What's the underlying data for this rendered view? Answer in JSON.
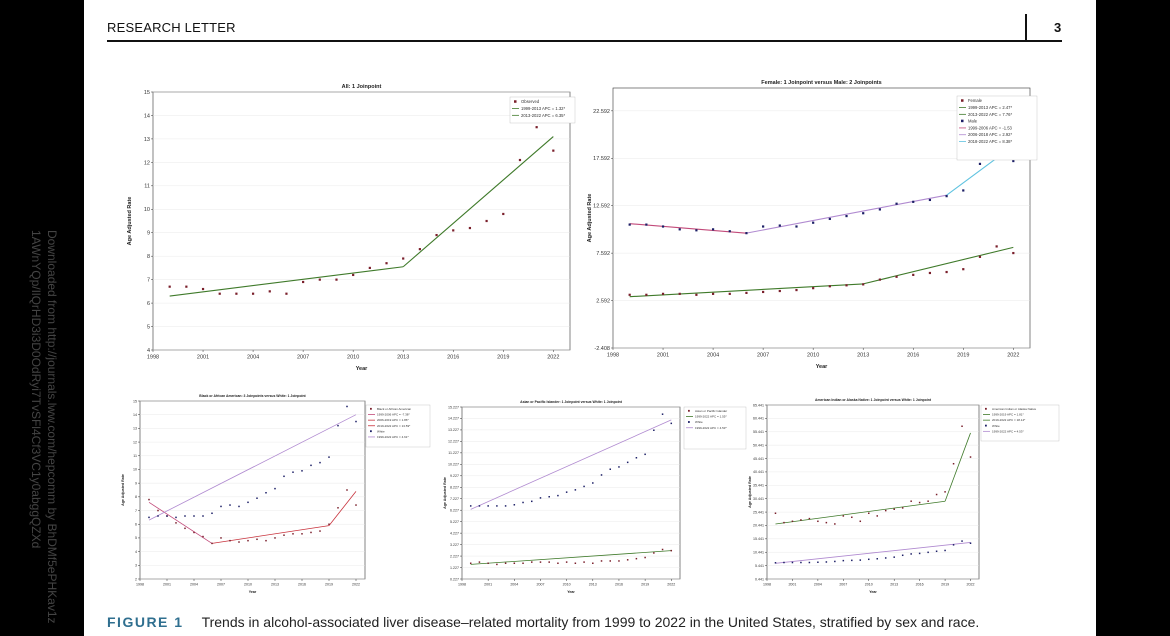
{
  "page": {
    "running_head": "RESEARCH LETTER",
    "page_number": "3",
    "side_note_line1": "Downloaded from http://journals.lww.com/hepcomm by BhDMf5ePHKav1z",
    "side_note_line2": "1AWnYQp/IlQrHD3i3D0OdRyi7TvSFl4Cf3VC1y0abggQZXd"
  },
  "caption": {
    "label": "FIGURE 1",
    "text": "Trends in alcohol-associated liver disease–related mortality from 1999 to 2022 in the United States, stratified by sex and race."
  },
  "colors": {
    "observed": "#7a1f2b",
    "male_marker": "#1c1f66",
    "green_fit": "#3f7a2a",
    "pink_fit": "#c24a7a",
    "violet_fit": "#b08ad0",
    "cyan_fit": "#5fc3e0",
    "red_fit": "#c8323c",
    "axis": "#333333",
    "grid": "#e4e4e4"
  },
  "chart_data": [
    {
      "type": "scatter",
      "title": "All: 1 Joinpoint",
      "xlabel": "Year",
      "ylabel": "Age Adjusted Rate",
      "xlim": [
        1998,
        2023
      ],
      "ylim": [
        4,
        15
      ],
      "xticks": [
        "1998",
        "2001",
        "2004",
        "2007",
        "2010",
        "2013",
        "2016",
        "2019",
        "2022"
      ],
      "yticks": [
        "4",
        "5",
        "6",
        "7",
        "8",
        "9",
        "10",
        "11",
        "12",
        "13",
        "14",
        "15"
      ],
      "legend_position": "top-right",
      "series": [
        {
          "name": "Observed",
          "marker_color": "#7a1f2b",
          "x": [
            1999,
            2000,
            2001,
            2002,
            2003,
            2004,
            2005,
            2006,
            2007,
            2008,
            2009,
            2010,
            2011,
            2012,
            2013,
            2014,
            2015,
            2016,
            2017,
            2018,
            2019,
            2020,
            2021,
            2022
          ],
          "y": [
            6.7,
            6.7,
            6.6,
            6.4,
            6.4,
            6.4,
            6.5,
            6.4,
            6.9,
            7.0,
            7.0,
            7.2,
            7.5,
            7.7,
            7.9,
            8.3,
            8.9,
            9.1,
            9.2,
            9.5,
            9.8,
            12.1,
            13.5,
            12.5
          ]
        }
      ],
      "fits": [
        {
          "label": "1999-2013 APC = 1.32*",
          "color": "#3f7a2a",
          "x": [
            1999,
            2013
          ],
          "y": [
            6.3,
            7.55
          ]
        },
        {
          "label": "2013-2022 APC = 6.35*",
          "color": "#3f7a2a",
          "x": [
            2013,
            2022
          ],
          "y": [
            7.55,
            13.1
          ]
        }
      ]
    },
    {
      "type": "scatter",
      "title": "Female: 1 Joinpoint versus Male: 2 Joinpoints",
      "xlabel": "Year",
      "ylabel": "Age Adjusted Rate",
      "xlim": [
        1998,
        2023
      ],
      "ylim": [
        -2.408,
        25
      ],
      "xticks": [
        "1998",
        "2001",
        "2004",
        "2007",
        "2010",
        "2013",
        "2016",
        "2019",
        "2022"
      ],
      "yticks": [
        "-2.408",
        "2.592",
        "7.592",
        "12.592",
        "17.592",
        "22.592"
      ],
      "legend_position": "top-right",
      "series": [
        {
          "name": "Female",
          "marker_color": "#7a1f2b",
          "x": [
            1999,
            2000,
            2001,
            2002,
            2003,
            2004,
            2005,
            2006,
            2007,
            2008,
            2009,
            2010,
            2011,
            2012,
            2013,
            2014,
            2015,
            2016,
            2017,
            2018,
            2019,
            2020,
            2021,
            2022
          ],
          "y": [
            3.2,
            3.2,
            3.3,
            3.3,
            3.2,
            3.3,
            3.3,
            3.4,
            3.5,
            3.6,
            3.7,
            3.9,
            4.1,
            4.2,
            4.3,
            4.8,
            5.1,
            5.3,
            5.5,
            5.6,
            5.9,
            7.2,
            8.3,
            7.6
          ]
        },
        {
          "name": "Male",
          "marker_color": "#1c1f66",
          "x": [
            1999,
            2000,
            2001,
            2002,
            2003,
            2004,
            2005,
            2006,
            2007,
            2008,
            2009,
            2010,
            2011,
            2012,
            2013,
            2014,
            2015,
            2016,
            2017,
            2018,
            2019,
            2020,
            2021,
            2022
          ],
          "y": [
            10.6,
            10.6,
            10.4,
            10.1,
            10.0,
            10.1,
            9.9,
            9.7,
            10.4,
            10.5,
            10.4,
            10.8,
            11.2,
            11.5,
            11.8,
            12.2,
            12.8,
            13.0,
            13.2,
            13.6,
            14.2,
            17.0,
            18.6,
            17.3
          ]
        }
      ],
      "fits": [
        {
          "label": "1999-2013 APC = 2.47*",
          "color": "#3f7a2a",
          "x": [
            1999,
            2013
          ],
          "y": [
            3.0,
            4.35
          ]
        },
        {
          "label": "2013-2022 APC = 7.76*",
          "color": "#3f7a2a",
          "x": [
            2013,
            2022
          ],
          "y": [
            4.35,
            8.2
          ]
        },
        {
          "label": "1999-2006 APC = -1.53",
          "color": "#c24a7a",
          "x": [
            1999,
            2006
          ],
          "y": [
            10.7,
            9.7
          ]
        },
        {
          "label": "2006-2018 APC = 2.92*",
          "color": "#b08ad0",
          "x": [
            2006,
            2018
          ],
          "y": [
            9.7,
            13.7
          ]
        },
        {
          "label": "2018-2022 APC = 8.38*",
          "color": "#5fc3e0",
          "x": [
            2018,
            2022
          ],
          "y": [
            13.7,
            18.9
          ]
        }
      ]
    },
    {
      "type": "scatter",
      "title": "Black or African American: 3 Joinpoints versus White: 1 Joinpoint",
      "xlabel": "Year",
      "ylabel": "Age Adjusted Rate",
      "xlim": [
        1998,
        2023
      ],
      "ylim": [
        2,
        15
      ],
      "xticks": [
        "1998",
        "2001",
        "2004",
        "2007",
        "2010",
        "2013",
        "2016",
        "2019",
        "2022"
      ],
      "yticks": [
        "2",
        "3",
        "4",
        "5",
        "6",
        "7",
        "8",
        "9",
        "10",
        "11",
        "12",
        "13",
        "14",
        "15"
      ],
      "legend_position": "top-right",
      "series": [
        {
          "name": "Black or African American",
          "marker_color": "#7a1f2b",
          "x": [
            1999,
            2000,
            2001,
            2002,
            2003,
            2004,
            2005,
            2006,
            2007,
            2008,
            2009,
            2010,
            2011,
            2012,
            2013,
            2014,
            2015,
            2016,
            2017,
            2018,
            2019,
            2020,
            2021,
            2022
          ],
          "y": [
            7.8,
            7.0,
            6.6,
            6.1,
            5.7,
            5.4,
            5.1,
            4.6,
            5.0,
            4.8,
            4.7,
            4.8,
            4.9,
            4.8,
            5.0,
            5.2,
            5.3,
            5.3,
            5.4,
            5.5,
            6.0,
            7.2,
            8.5,
            7.4
          ]
        },
        {
          "name": "White",
          "marker_color": "#1c1f66",
          "x": [
            1999,
            2000,
            2001,
            2002,
            2003,
            2004,
            2005,
            2006,
            2007,
            2008,
            2009,
            2010,
            2011,
            2012,
            2013,
            2014,
            2015,
            2016,
            2017,
            2018,
            2019,
            2020,
            2021,
            2022
          ],
          "y": [
            6.5,
            6.6,
            6.6,
            6.5,
            6.6,
            6.6,
            6.6,
            6.8,
            7.3,
            7.4,
            7.3,
            7.6,
            7.9,
            8.3,
            8.6,
            9.5,
            9.8,
            9.9,
            10.3,
            10.5,
            10.9,
            13.2,
            14.6,
            13.5
          ]
        }
      ],
      "fits": [
        {
          "label": "1999-2006 APC = -7.38*",
          "color": "#c24a7a",
          "x": [
            1999,
            2006
          ],
          "y": [
            7.6,
            4.6
          ]
        },
        {
          "label": "2006-2019 APC = 1.86*",
          "color": "#c8323c",
          "x": [
            2006,
            2019
          ],
          "y": [
            4.6,
            5.9
          ]
        },
        {
          "label": "2019-2022 APC = 13.59*",
          "color": "#c8323c",
          "x": [
            2019,
            2022
          ],
          "y": [
            5.9,
            8.4
          ]
        },
        {
          "label": "1999-2022 APC = 4.61*",
          "color": "#b08ad0",
          "x": [
            1999,
            2022
          ],
          "y": [
            6.3,
            14.0
          ]
        }
      ]
    },
    {
      "type": "scatter",
      "title": "Asian or Pacific Islander: 1 Joinpoint versus White: 1 Joinpoint",
      "xlabel": "Year",
      "ylabel": "Age Adjusted Rate",
      "xlim": [
        1998,
        2023
      ],
      "ylim": [
        0.227,
        15.227
      ],
      "xticks": [
        "1998",
        "2001",
        "2004",
        "2007",
        "2010",
        "2013",
        "2016",
        "2019",
        "2022"
      ],
      "yticks": [
        "0.227",
        "1.227",
        "2.227",
        "3.227",
        "4.227",
        "5.227",
        "6.227",
        "7.227",
        "8.227",
        "9.227",
        "10.227",
        "11.227",
        "12.227",
        "13.227",
        "14.227",
        "15.227"
      ],
      "legend_position": "top-right",
      "series": [
        {
          "name": "Asian or Pacific Islander",
          "marker_color": "#7a1f2b",
          "x": [
            1999,
            2000,
            2001,
            2002,
            2003,
            2004,
            2005,
            2006,
            2007,
            2008,
            2009,
            2010,
            2011,
            2012,
            2013,
            2014,
            2015,
            2016,
            2017,
            2018,
            2019,
            2020,
            2021,
            2022
          ],
          "y": [
            1.6,
            1.7,
            1.6,
            1.5,
            1.6,
            1.6,
            1.6,
            1.7,
            1.7,
            1.7,
            1.6,
            1.7,
            1.6,
            1.7,
            1.6,
            1.8,
            1.8,
            1.8,
            1.9,
            2.0,
            2.1,
            2.5,
            2.8,
            2.7
          ]
        },
        {
          "name": "White",
          "marker_color": "#1c1f66",
          "x": [
            1999,
            2000,
            2001,
            2002,
            2003,
            2004,
            2005,
            2006,
            2007,
            2008,
            2009,
            2010,
            2011,
            2012,
            2013,
            2014,
            2015,
            2016,
            2017,
            2018,
            2019,
            2020,
            2021,
            2022
          ],
          "y": [
            6.6,
            6.6,
            6.6,
            6.6,
            6.6,
            6.7,
            6.9,
            7.0,
            7.3,
            7.4,
            7.5,
            7.8,
            8.0,
            8.3,
            8.6,
            9.3,
            9.8,
            10.0,
            10.4,
            10.8,
            11.1,
            13.2,
            14.6,
            13.8
          ]
        }
      ],
      "fits": [
        {
          "label": "1999-2022 APC = 1.55*",
          "color": "#3f7a2a",
          "x": [
            1999,
            2022
          ],
          "y": [
            1.5,
            2.7
          ]
        },
        {
          "label": "1999-2022 APC = 4.53*",
          "color": "#b08ad0",
          "x": [
            1999,
            2022
          ],
          "y": [
            6.3,
            14.1
          ]
        }
      ]
    },
    {
      "type": "scatter",
      "title": "American Indian or Alaska Native: 1 Joinpoint versus White: 1 Joinpoint",
      "xlabel": "Year",
      "ylabel": "Age Adjusted Rate",
      "xlim": [
        1998,
        2023
      ],
      "ylim": [
        0.441,
        65.441
      ],
      "xticks": [
        "1998",
        "2001",
        "2004",
        "2007",
        "2010",
        "2013",
        "2016",
        "2019",
        "2022"
      ],
      "yticks": [
        "0.441",
        "5.441",
        "10.441",
        "15.441",
        "20.441",
        "25.441",
        "30.441",
        "35.441",
        "40.441",
        "45.441",
        "50.441",
        "55.441",
        "60.441",
        "65.441"
      ],
      "legend_position": "top-right",
      "series": [
        {
          "name": "American Indian or Alaska Native",
          "marker_color": "#7a1f2b",
          "x": [
            1999,
            2000,
            2001,
            2002,
            2003,
            2004,
            2005,
            2006,
            2007,
            2008,
            2009,
            2010,
            2011,
            2012,
            2013,
            2014,
            2015,
            2016,
            2017,
            2018,
            2019,
            2020,
            2021,
            2022
          ],
          "y": [
            25.0,
            21.5,
            22.0,
            22.5,
            23.0,
            22.0,
            21.5,
            21.0,
            24.0,
            23.5,
            22.0,
            25.0,
            24.0,
            26.0,
            26.5,
            27.0,
            29.5,
            29.0,
            29.5,
            32.0,
            33.0,
            43.5,
            57.5,
            46.0
          ]
        },
        {
          "name": "White",
          "marker_color": "#1c1f66",
          "x": [
            1999,
            2000,
            2001,
            2002,
            2003,
            2004,
            2005,
            2006,
            2007,
            2008,
            2009,
            2010,
            2011,
            2012,
            2013,
            2014,
            2015,
            2016,
            2017,
            2018,
            2019,
            2020,
            2021,
            2022
          ],
          "y": [
            6.5,
            6.6,
            6.6,
            6.6,
            6.6,
            6.7,
            6.8,
            7.0,
            7.3,
            7.4,
            7.5,
            7.8,
            8.0,
            8.3,
            8.6,
            9.3,
            9.8,
            10.0,
            10.4,
            10.8,
            11.1,
            13.2,
            14.6,
            13.8
          ]
        }
      ],
      "fits": [
        {
          "label": "1999-2019 APC = 1.81*",
          "color": "#3f7a2a",
          "x": [
            1999,
            2019
          ],
          "y": [
            21.0,
            29.5
          ]
        },
        {
          "label": "2019-2022 APC = 18.14*",
          "color": "#3f7a2a",
          "x": [
            2019,
            2022
          ],
          "y": [
            29.5,
            55.0
          ]
        },
        {
          "label": "1999-2022 APC = 4.53*",
          "color": "#b08ad0",
          "x": [
            1999,
            2022
          ],
          "y": [
            6.3,
            14.1
          ]
        }
      ]
    }
  ]
}
